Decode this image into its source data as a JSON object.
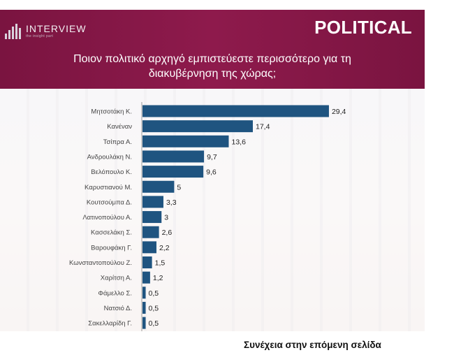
{
  "header": {
    "brand_name": "INTERVIEW",
    "brand_tagline": "the insight part",
    "section": "POLITICAL",
    "question_line1": "Ποιον πολιτικό αρχηγό εμπιστεύεστε περισσότερο για τη",
    "question_line2": "διακυβέρνηση της χώρας;"
  },
  "colors": {
    "header_bg": "#8e1a4c",
    "bar": "#1f5480"
  },
  "chart_data": {
    "type": "bar",
    "orientation": "horizontal",
    "title": "Ποιον πολιτικό αρχηγό εμπιστεύεστε περισσότερο για τη διακυβέρνηση της χώρας;",
    "categories": [
      "Μητσοτάκη Κ.",
      "Κανέναν",
      "Τσίπρα Α.",
      "Ανδρουλάκη Ν.",
      "Βελόπουλο Κ.",
      "Καρυστιανού Μ.",
      "Κουτσούμπα Δ.",
      "Λατινοπούλου Α.",
      "Κασσελάκη Σ.",
      "Βαρουφάκη Γ.",
      "Κωνσταντοπούλου Ζ.",
      "Χαρίτση Α.",
      "Φάμελλο Σ.",
      "Νατσιό Δ.",
      "Σακελλαρίδη Γ."
    ],
    "values": [
      29.4,
      17.4,
      13.6,
      9.7,
      9.6,
      5,
      3.3,
      3,
      2.6,
      2.2,
      1.5,
      1.2,
      0.5,
      0.5,
      0.5
    ],
    "value_labels": [
      "29,4",
      "17,4",
      "13,6",
      "9,7",
      "9,6",
      "5",
      "3,3",
      "3",
      "2,6",
      "2,2",
      "1,5",
      "1,2",
      "0,5",
      "0,5",
      "0,5"
    ],
    "xlim": [
      0,
      30
    ],
    "grid": false,
    "legend": "none"
  },
  "footer": {
    "note": "Συνέχεια στην επόμενη σελίδα"
  }
}
